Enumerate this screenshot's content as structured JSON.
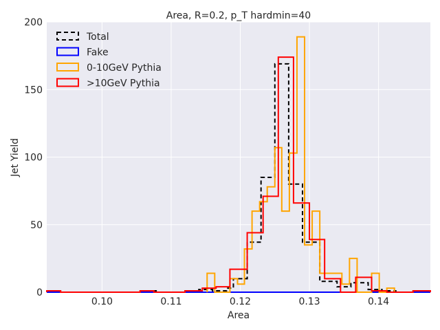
{
  "chart_data": {
    "type": "step-histogram",
    "title": "Area, R=0.2, p_T hardmin=40",
    "xlabel": "Area",
    "ylabel": "Jet Yield",
    "xlim": [
      0.092,
      0.1475
    ],
    "ylim": [
      0,
      200
    ],
    "xticks": [
      0.1,
      0.11,
      0.12,
      0.13,
      0.14
    ],
    "xtick_labels": [
      "0.10",
      "0.11",
      "0.12",
      "0.13",
      "0.14"
    ],
    "yticks": [
      0,
      50,
      100,
      150,
      200
    ],
    "ytick_labels": [
      "0",
      "50",
      "100",
      "150",
      "200"
    ],
    "grid": true,
    "legend_position": "top-left",
    "series": [
      {
        "name": "Total",
        "color": "#000000",
        "style": "dashed",
        "edges": [
          0.092,
          0.094,
          0.106,
          0.108,
          0.112,
          0.114,
          0.116,
          0.118,
          0.119,
          0.121,
          0.123,
          0.125,
          0.127,
          0.129,
          0.1315,
          0.134,
          0.136,
          0.1385,
          0.1405,
          0.1425,
          0.145,
          0.1475
        ],
        "values": [
          1,
          0,
          1,
          0,
          1,
          2,
          1,
          3,
          10,
          37,
          85,
          169,
          80,
          37,
          8,
          4,
          7,
          2,
          1,
          0,
          1
        ]
      },
      {
        "name": "Fake",
        "color": "#0000ff",
        "style": "solid",
        "edges": [
          0.092,
          0.1475
        ],
        "values": [
          0
        ]
      },
      {
        "name": "0-10GeV Pythia",
        "color": "#ffa500",
        "style": "solid",
        "edges": [
          0.1152,
          0.1163,
          0.1174,
          0.1185,
          0.1196,
          0.1206,
          0.1217,
          0.1228,
          0.1239,
          0.125,
          0.126,
          0.1271,
          0.1282,
          0.1293,
          0.1304,
          0.1315,
          0.1347,
          0.1358,
          0.1369,
          0.138,
          0.139,
          0.1401,
          0.1412,
          0.1423
        ],
        "values": [
          14,
          0,
          0,
          10,
          6,
          32,
          60,
          67,
          78,
          107,
          60,
          103,
          189,
          35,
          60,
          14,
          6,
          25,
          0,
          0,
          14,
          0,
          3
        ]
      },
      {
        "name": ">10GeV Pythia",
        "color": "#ff0000",
        "style": "solid",
        "edges": [
          0.092,
          0.094,
          0.1055,
          0.1075,
          0.112,
          0.1145,
          0.1165,
          0.1185,
          0.121,
          0.1233,
          0.1255,
          0.1277,
          0.13,
          0.1322,
          0.1345,
          0.1367,
          0.139,
          0.1412,
          0.145,
          0.1475
        ],
        "values": [
          1,
          0,
          1,
          0,
          1,
          3,
          4,
          17,
          44,
          71,
          174,
          66,
          39,
          10,
          0,
          11,
          1,
          0,
          1
        ]
      }
    ]
  }
}
